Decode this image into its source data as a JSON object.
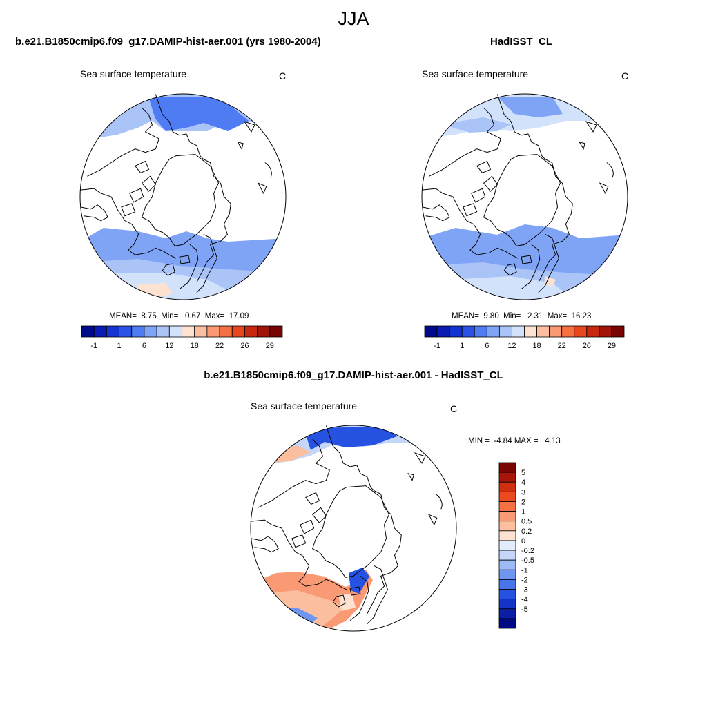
{
  "figure": {
    "title": "JJA"
  },
  "panels": [
    {
      "id": "model",
      "case_title": "b.e21.B1850cmip6.f09_g17.DAMIP-hist-aer.001 (yrs 1980-2004)",
      "variable": "Sea surface temperature",
      "units": "C",
      "stats": {
        "mean_label": "MEAN=",
        "mean": "8.75",
        "min_label": "Min=",
        "min": "0.67",
        "max_label": "Max=",
        "max": "17.09"
      }
    },
    {
      "id": "obs",
      "case_title": "HadISST_CL",
      "variable": "Sea surface temperature",
      "units": "C",
      "stats": {
        "mean_label": "MEAN=",
        "mean": "9.80",
        "min_label": "Min=",
        "min": "2.31",
        "max_label": "Max=",
        "max": "16.23"
      }
    },
    {
      "id": "diff",
      "case_title": "b.e21.B1850cmip6.f09_g17.DAMIP-hist-aer.001 - HadISST_CL",
      "variable": "Sea surface temperature",
      "units": "C",
      "stats": {
        "min_label": "MIN =",
        "min": "-4.84",
        "max_label": "MAX =",
        "max": "4.13"
      }
    }
  ],
  "colorbars": {
    "sst": {
      "colors": [
        "#000a8c",
        "#0a1cb4",
        "#1434d2",
        "#2a52e6",
        "#4f7cf2",
        "#7fa4f6",
        "#aac4f8",
        "#d2e2fb",
        "#fde2d2",
        "#fbbf9f",
        "#f99a75",
        "#f57142",
        "#e8461f",
        "#c82810",
        "#a01508",
        "#780404"
      ],
      "tick_labels": [
        "-1",
        "1",
        "6",
        "12",
        "18",
        "22",
        "26",
        "29"
      ]
    },
    "diff": {
      "colors": [
        "#780404",
        "#a81608",
        "#d0300f",
        "#ec4a1e",
        "#f57142",
        "#f99a75",
        "#fbbf9f",
        "#fde2d2",
        "#e3ecfb",
        "#c4d7fa",
        "#9dbaf5",
        "#6e95f0",
        "#4775ea",
        "#2652e2",
        "#1434c8",
        "#0a1fa6",
        "#000a80"
      ],
      "tick_labels": [
        "5",
        "4",
        "3",
        "2",
        "1",
        "0.5",
        "0.2",
        "0",
        "-0.2",
        "-0.5",
        "-1",
        "-2",
        "-3",
        "-4",
        "-5"
      ]
    }
  }
}
